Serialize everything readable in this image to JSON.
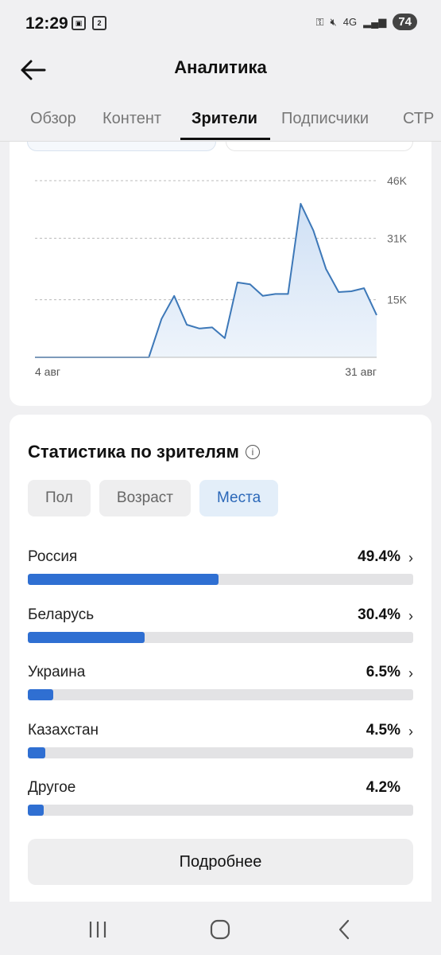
{
  "status_bar": {
    "time": "12:29",
    "network": "4G",
    "battery": "74",
    "icons": [
      "screenshot-icon",
      "notification-badge-icon",
      "key-icon",
      "mute-icon",
      "signal-icon"
    ],
    "notification_badge": "2"
  },
  "header": {
    "title": "Аналитика",
    "back_icon": "arrow-left-icon"
  },
  "tabs": [
    {
      "label": "Обзор",
      "active": false
    },
    {
      "label": "Контент",
      "active": false
    },
    {
      "label": "Зрители",
      "active": true
    },
    {
      "label": "Подписчики",
      "active": false
    },
    {
      "label": "СТР",
      "active": false
    }
  ],
  "chart_data": {
    "type": "area",
    "x_labels": [
      "4 авг",
      "31 авг"
    ],
    "y_ticks": [
      "46K",
      "31K",
      "15K"
    ],
    "ylim": [
      0,
      46000
    ],
    "values": [
      0,
      0,
      0,
      0,
      0,
      0,
      0,
      0,
      0,
      0,
      10000,
      16000,
      8500,
      7500,
      7800,
      5000,
      19500,
      19000,
      16000,
      16500,
      16500,
      40000,
      33000,
      23000,
      17000,
      17200,
      18000,
      11000
    ],
    "color": "#3d78b8",
    "grid": true
  },
  "audience": {
    "title": "Статистика по зрителям",
    "info_icon": "info-icon",
    "filters": [
      {
        "label": "Пол",
        "active": false
      },
      {
        "label": "Возраст",
        "active": false
      },
      {
        "label": "Места",
        "active": true
      }
    ],
    "locations": [
      {
        "name": "Россия",
        "value": "49.4%",
        "fraction": 0.494,
        "chevron": true
      },
      {
        "name": "Беларусь",
        "value": "30.4%",
        "fraction": 0.304,
        "chevron": true
      },
      {
        "name": "Украина",
        "value": "6.5%",
        "fraction": 0.065,
        "chevron": true
      },
      {
        "name": "Казахстан",
        "value": "4.5%",
        "fraction": 0.045,
        "chevron": true
      },
      {
        "name": "Другое",
        "value": "4.2%",
        "fraction": 0.042,
        "chevron": false
      }
    ],
    "more_button": "Подробнее"
  },
  "nav": {
    "icons": [
      "recents-icon",
      "home-icon",
      "back-icon"
    ]
  },
  "colors": {
    "accent": "#2f6fd2",
    "background": "#f0f0f2"
  }
}
